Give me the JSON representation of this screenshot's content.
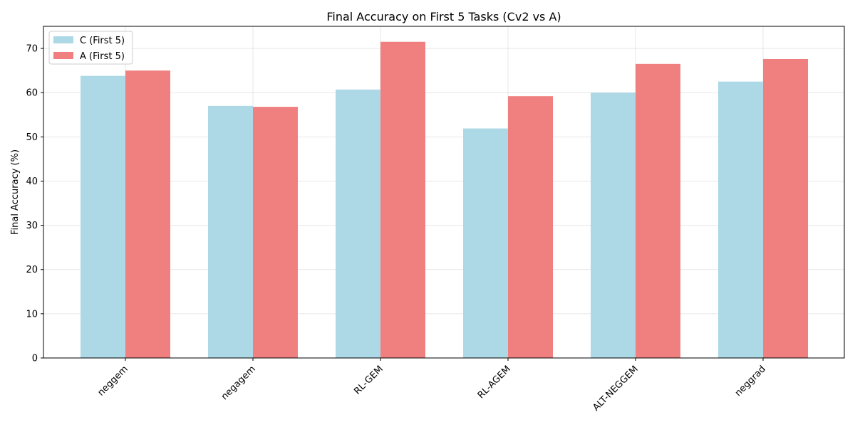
{
  "chart_data": {
    "type": "bar",
    "title": "Final Accuracy on First 5 Tasks (Cv2 vs A)",
    "xlabel": "",
    "ylabel": "Final Accuracy (%)",
    "categories": [
      "neggem",
      "negagem",
      "RL-GEM",
      "RL-AGEM",
      "ALT-NEGGEM",
      "neggrad"
    ],
    "series": [
      {
        "name": "C (First 5)",
        "color": "#add8e6",
        "values": [
          63.8,
          57.0,
          60.7,
          51.9,
          60.0,
          62.5
        ]
      },
      {
        "name": "A (First 5)",
        "color": "#f08080",
        "values": [
          65.0,
          56.8,
          71.5,
          59.2,
          66.5,
          67.6
        ]
      }
    ],
    "ylim": [
      0,
      75
    ],
    "yticks": [
      0,
      10,
      20,
      30,
      40,
      50,
      60,
      70
    ],
    "grid": true,
    "legend_position": "top-left",
    "xtick_rotation": 45
  }
}
